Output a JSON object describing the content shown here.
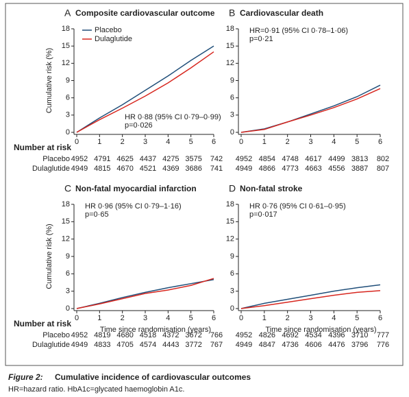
{
  "chart_data": [
    {
      "type": "line",
      "panel_label": "A",
      "title": "Composite cardiovascular outcome",
      "x": [
        0,
        1,
        2,
        3,
        4,
        5,
        6
      ],
      "series": [
        {
          "name": "Placebo",
          "color": "#1f4e79",
          "values": [
            0,
            2.5,
            4.8,
            7.3,
            9.8,
            12.5,
            15.0
          ]
        },
        {
          "name": "Dulaglutide",
          "color": "#d7261e",
          "values": [
            0,
            2.2,
            4.2,
            6.3,
            8.6,
            11.2,
            14.0
          ]
        }
      ],
      "xlim": [
        0,
        6
      ],
      "ylim": [
        0,
        18
      ],
      "xticks": [
        0,
        1,
        2,
        3,
        4,
        5,
        6
      ],
      "yticks": [
        0,
        3,
        6,
        9,
        12,
        15,
        18
      ],
      "ylabel": "Cumulative risk (%)",
      "legend": "upper left",
      "annotations": [
        "HR 0·88 (95% CI 0·79–0·99)",
        "p=0·026"
      ],
      "at_risk": {
        "title": "Number at risk",
        "rows": [
          {
            "name": "Placebo",
            "values": [
              4952,
              4791,
              4625,
              4437,
              4275,
              3575,
              742
            ]
          },
          {
            "name": "Dulaglutide",
            "values": [
              4949,
              4815,
              4670,
              4521,
              4369,
              3686,
              741
            ]
          }
        ]
      }
    },
    {
      "type": "line",
      "panel_label": "B",
      "title": "Cardiovascular death",
      "x": [
        0,
        1,
        2,
        3,
        4,
        5,
        6
      ],
      "series": [
        {
          "color": "#1f4e79",
          "values": [
            0,
            0.6,
            1.8,
            3.2,
            4.6,
            6.2,
            8.2
          ]
        },
        {
          "color": "#d7261e",
          "values": [
            0,
            0.5,
            1.8,
            3.0,
            4.3,
            5.8,
            7.6
          ]
        }
      ],
      "xlim": [
        0,
        6
      ],
      "ylim": [
        0,
        18
      ],
      "xticks": [
        0,
        1,
        2,
        3,
        4,
        5,
        6
      ],
      "yticks": [
        0,
        3,
        6,
        9,
        12,
        15,
        18
      ],
      "annotations": [
        "HR=0·91 (95% CI 0·78–1·06)",
        "p=0·21"
      ],
      "at_risk": {
        "rows": [
          {
            "values": [
              4952,
              4854,
              4748,
              4617,
              4499,
              3813,
              802
            ]
          },
          {
            "values": [
              4949,
              4866,
              4773,
              4663,
              4556,
              3887,
              807
            ]
          }
        ]
      }
    },
    {
      "type": "line",
      "panel_label": "C",
      "title": "Non-fatal myocardial infarction",
      "x": [
        0,
        1,
        2,
        3,
        4,
        5,
        6
      ],
      "series": [
        {
          "color": "#1f4e79",
          "values": [
            0,
            0.9,
            1.9,
            2.8,
            3.6,
            4.3,
            5.0
          ]
        },
        {
          "color": "#d7261e",
          "values": [
            0,
            0.8,
            1.7,
            2.6,
            3.2,
            4.0,
            5.2
          ]
        }
      ],
      "xlim": [
        0,
        6
      ],
      "ylim": [
        0,
        18
      ],
      "xticks": [
        0,
        1,
        2,
        3,
        4,
        5,
        6
      ],
      "yticks": [
        0,
        3,
        6,
        9,
        12,
        15,
        18
      ],
      "ylabel": "Cumulative risk (%)",
      "xlabel": "Time since randomisation (years)",
      "annotations": [
        "HR 0·96 (95% CI 0·79–1·16)",
        "p=0·65"
      ],
      "at_risk": {
        "title": "Number at risk",
        "rows": [
          {
            "name": "Placebo",
            "values": [
              4952,
              4819,
              4680,
              4518,
              4372,
              3672,
              766
            ]
          },
          {
            "name": "Dulaglutide",
            "values": [
              4949,
              4833,
              4705,
              4574,
              4443,
              3772,
              767
            ]
          }
        ]
      }
    },
    {
      "type": "line",
      "panel_label": "D",
      "title": "Non-fatal stroke",
      "x": [
        0,
        1,
        2,
        3,
        4,
        5,
        6
      ],
      "series": [
        {
          "color": "#1f4e79",
          "values": [
            0,
            0.9,
            1.6,
            2.3,
            3.0,
            3.6,
            4.1
          ]
        },
        {
          "color": "#d7261e",
          "values": [
            0,
            0.5,
            1.1,
            1.7,
            2.3,
            2.8,
            3.1
          ]
        }
      ],
      "xlim": [
        0,
        6
      ],
      "ylim": [
        0,
        18
      ],
      "xticks": [
        0,
        1,
        2,
        3,
        4,
        5,
        6
      ],
      "yticks": [
        0,
        3,
        6,
        9,
        12,
        15,
        18
      ],
      "xlabel": "Time since randomisation (years)",
      "annotations": [
        "HR 0·76 (95% CI 0·61–0·95)",
        "p=0·017"
      ],
      "at_risk": {
        "rows": [
          {
            "values": [
              4952,
              4826,
              4692,
              4534,
              4396,
              3710,
              777
            ]
          },
          {
            "values": [
              4949,
              4847,
              4736,
              4606,
              4476,
              3796,
              776
            ]
          }
        ]
      }
    }
  ],
  "caption": {
    "label": "Figure 2:",
    "title": "Cumulative incidence of cardiovascular outcomes",
    "note": "HR=hazard ratio. HbA1c=glycated haemoglobin A1c."
  }
}
